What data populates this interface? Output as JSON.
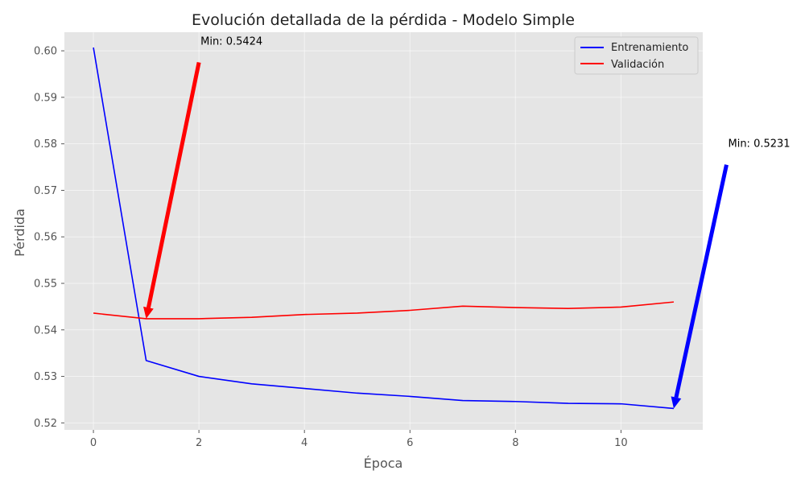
{
  "chart_data": {
    "type": "line",
    "title": "Evolución detallada de la pérdida - Modelo Simple",
    "xlabel": "Época",
    "ylabel": "Pérdida",
    "xlim": [
      -0.55,
      11.55
    ],
    "ylim": [
      0.5185,
      0.604
    ],
    "xticks": [
      0,
      2,
      4,
      6,
      8,
      10
    ],
    "yticks": [
      0.52,
      0.53,
      0.54,
      0.55,
      0.56,
      0.57,
      0.58,
      0.59,
      0.6
    ],
    "grid": true,
    "legend_position": "top-right",
    "x": [
      0,
      1,
      2,
      3,
      4,
      5,
      6,
      7,
      8,
      9,
      10,
      11
    ],
    "series": [
      {
        "name": "Entrenamiento",
        "color": "#0000ff",
        "values": [
          0.6007,
          0.5334,
          0.53,
          0.5284,
          0.5274,
          0.5264,
          0.5257,
          0.5248,
          0.5246,
          0.5242,
          0.5241,
          0.5231
        ]
      },
      {
        "name": "Validación",
        "color": "#ff0000",
        "values": [
          0.5436,
          0.5424,
          0.5424,
          0.5427,
          0.5433,
          0.5436,
          0.5442,
          0.5451,
          0.5448,
          0.5446,
          0.5449,
          0.546
        ]
      }
    ],
    "annotations": [
      {
        "text": "Min: 0.5424",
        "color": "#ff0000",
        "point": [
          1,
          0.5424
        ],
        "text_at": [
          2,
          0.5975
        ]
      },
      {
        "text": "Min: 0.5231",
        "color": "#0000ff",
        "point": [
          11,
          0.5231
        ],
        "text_at": [
          12,
          0.5755
        ]
      }
    ]
  }
}
